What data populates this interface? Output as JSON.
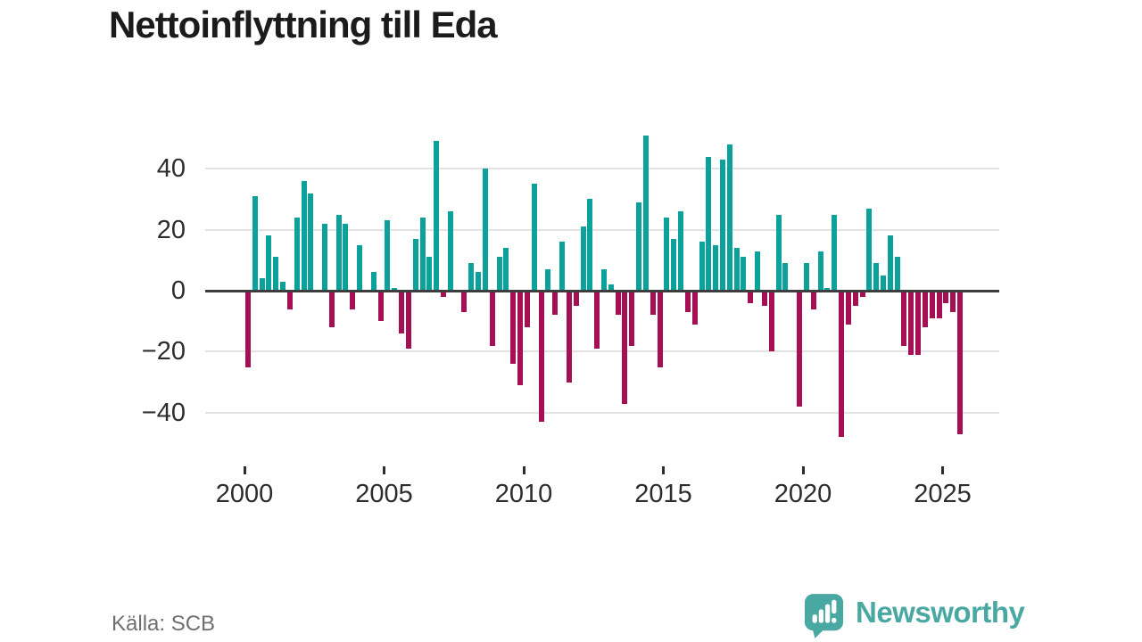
{
  "title": "Nettoinflyttning till Eda",
  "source_note": "Källa: SCB",
  "logo": {
    "brand": "Newsworthy",
    "icon": "bar-chart-speech-bubble-icon",
    "color": "#4aa8a2"
  },
  "chart_data": {
    "type": "bar",
    "title": "Nettoinflyttning till Eda",
    "freq": "quarterly",
    "start_period": "2000-Q1",
    "end_period": "2025-Q3",
    "values": [
      -25,
      31,
      4,
      18,
      11,
      3,
      -6,
      24,
      36,
      32,
      0,
      22,
      -12,
      25,
      22,
      -6,
      15,
      0,
      6,
      -10,
      23,
      1,
      -14,
      -19,
      17,
      24,
      11,
      49,
      -2,
      26,
      0,
      -7,
      9,
      6,
      40,
      -18,
      11,
      14,
      -24,
      -31,
      -12,
      35,
      -43,
      7,
      -8,
      16,
      -30,
      -5,
      21,
      30,
      -19,
      7,
      2,
      -8,
      -37,
      -18,
      29,
      51,
      -8,
      -25,
      24,
      17,
      26,
      -7,
      -11,
      16,
      44,
      15,
      43,
      48,
      14,
      11,
      -4,
      13,
      -5,
      -20,
      25,
      9,
      0,
      -38,
      9,
      -6,
      13,
      1,
      25,
      -48,
      -11,
      -5,
      -2,
      27,
      9,
      5,
      18,
      11,
      -18,
      -21,
      -21,
      -12,
      -9,
      -9,
      -4,
      -7,
      -47
    ],
    "x_tick_years": [
      "2000",
      "2005",
      "2010",
      "2015",
      "2020",
      "2025"
    ],
    "y_tick_labels": [
      "40",
      "20",
      "0",
      "−20",
      "−40"
    ],
    "y_tick_values": [
      40,
      20,
      0,
      -20,
      -40
    ],
    "ylim": [
      -52,
      55
    ],
    "grid": "horizontal",
    "legend": "none",
    "positive_color": "#0ba29b",
    "negative_color": "#a41053"
  }
}
